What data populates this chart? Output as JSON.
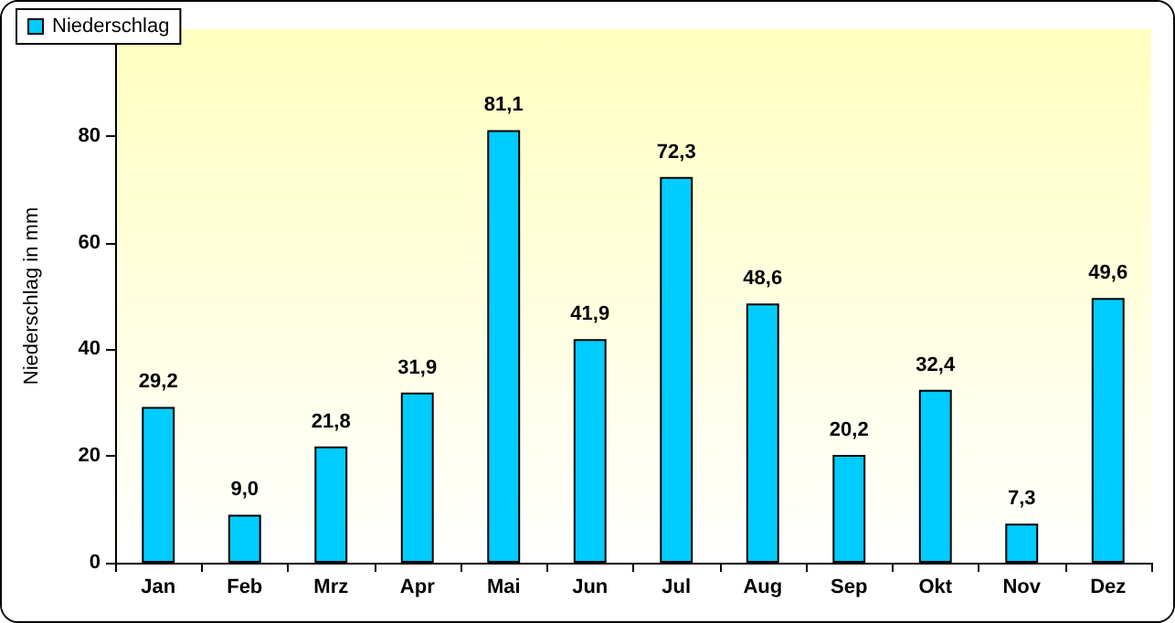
{
  "chart_data": {
    "type": "bar",
    "ylabel": "Niederschlag in mm",
    "categories": [
      "Jan",
      "Feb",
      "Mrz",
      "Apr",
      "Mai",
      "Jun",
      "Jul",
      "Aug",
      "Sep",
      "Okt",
      "Nov",
      "Dez"
    ],
    "series": [
      {
        "name": "Niederschlag",
        "color": "#00ccff",
        "values": [
          29.2,
          9.0,
          21.8,
          31.9,
          81.1,
          41.9,
          72.3,
          48.6,
          20.2,
          32.4,
          7.3,
          49.6
        ],
        "value_labels": [
          "29,2",
          "9,0",
          "21,8",
          "31,9",
          "81,1",
          "41,9",
          "72,3",
          "48,6",
          "20,2",
          "32,4",
          "7,3",
          "49,6"
        ]
      }
    ],
    "ylim": [
      0,
      100
    ],
    "yticks": [
      0,
      20,
      40,
      60,
      80,
      {
        "value": 100,
        "label": null
      }
    ],
    "grid": false,
    "legend": "top left"
  }
}
